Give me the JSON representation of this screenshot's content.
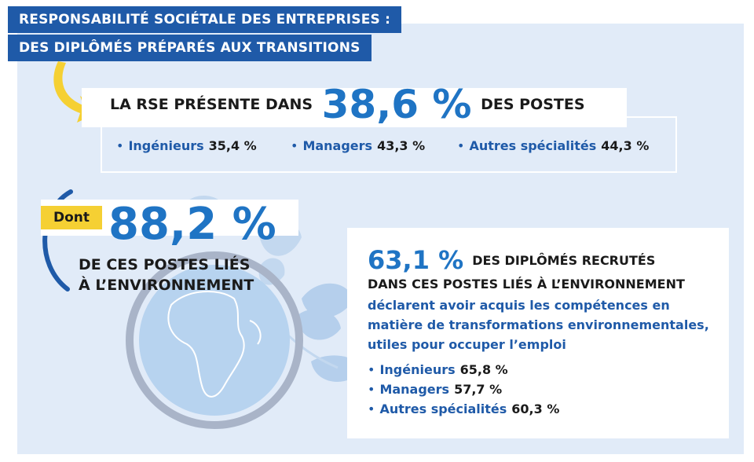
{
  "header": {
    "line1": "RESPONSABILITÉ SOCIÉTALE DES ENTREPRISES :",
    "line2": "DES DIPLÔMÉS PRÉPARÉS AUX TRANSITIONS"
  },
  "rse": {
    "prefix": "LA RSE PRÉSENTE DANS",
    "value": "38,6 %",
    "suffix": "DES POSTES",
    "items": [
      {
        "label": "Ingénieurs",
        "value": "35,4 %"
      },
      {
        "label": "Managers",
        "value": "43,3 %"
      },
      {
        "label": "Autres spécialités",
        "value": "44,3 %"
      }
    ]
  },
  "environment": {
    "badge": "Dont",
    "value": "88,2 %",
    "line1_start": "DE CES POSTES ",
    "line1_bold": "LIÉS",
    "line2": "À L’ENVIRONNEMENT"
  },
  "card": {
    "value": "63,1 %",
    "line1": "DES DIPLÔMÉS RECRUTÉS",
    "line2": "DANS CES POSTES LIÉS À L’ENVIRONNEMENT",
    "description": "déclarent avoir acquis les compétences en matière de transformations environnementales, utiles pour occuper l’emploi",
    "items": [
      {
        "label": "Ingénieurs",
        "value": "65,8 %"
      },
      {
        "label": "Managers",
        "value": "57,7 %"
      },
      {
        "label": "Autres spécialités",
        "value": "60,3 %"
      }
    ]
  },
  "colors": {
    "accent_blue": "#1f74c4",
    "title_blue": "#1f5aa8",
    "badge_yellow": "#f5d033",
    "panel_bg": "#e1ebf8"
  }
}
